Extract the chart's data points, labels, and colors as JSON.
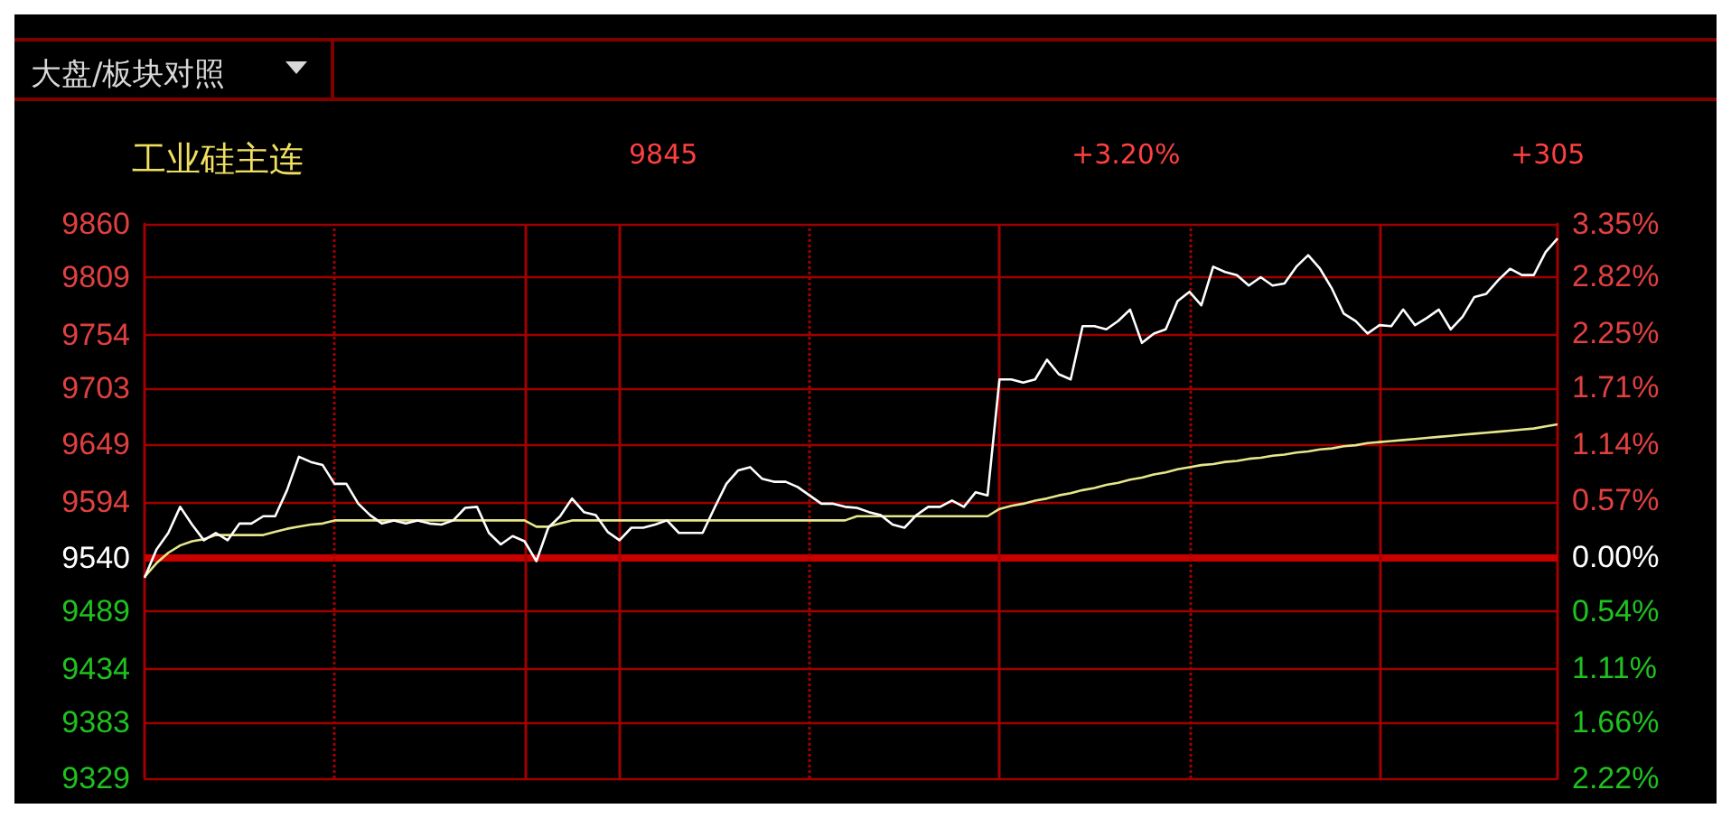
{
  "chart_data": {
    "type": "line",
    "title": "工业硅主连",
    "subtitle": "大盘/板块对照",
    "annotations": [
      "9845",
      "+3.20%",
      "+305"
    ],
    "categories": [
      null,
      null,
      null,
      null,
      null,
      null,
      null,
      null,
      null,
      null,
      null,
      null,
      null,
      null,
      null,
      null,
      null,
      null,
      null,
      null,
      null,
      null,
      null,
      null,
      null,
      null,
      null,
      null,
      null,
      null,
      null,
      null,
      null,
      null,
      null,
      null,
      null,
      null,
      null,
      null,
      null,
      null,
      null,
      null,
      null,
      null,
      null,
      null,
      null,
      null,
      null,
      null,
      null,
      null,
      null,
      null,
      null,
      null,
      null,
      null,
      null,
      null,
      null,
      null,
      null,
      null,
      null,
      null,
      null,
      null,
      null,
      null,
      null,
      null,
      null,
      null,
      null,
      null,
      null,
      null,
      null,
      null,
      null,
      null,
      null,
      null,
      null,
      null,
      null,
      null,
      null,
      null,
      null,
      null,
      null,
      null,
      null,
      null,
      null,
      null,
      null,
      null,
      null,
      null,
      null,
      null,
      null,
      null,
      null,
      null,
      null,
      null,
      null,
      null,
      null,
      null,
      null,
      null,
      null,
      null
    ],
    "series": [
      {
        "color": "#ffffff",
        "values": [
          9521,
          9548,
          9564,
          9589,
          9572,
          9557,
          9564,
          9557,
          9573,
          9573,
          9580,
          9580,
          9605,
          9637,
          9632,
          9629,
          9611,
          9611,
          9592,
          9581,
          9573,
          9576,
          9573,
          9576,
          9573,
          9572,
          9576,
          9588,
          9589,
          9564,
          9553,
          9561,
          9556,
          9537,
          9569,
          9580,
          9597,
          9584,
          9581,
          9565,
          9557,
          9569,
          9569,
          9572,
          9576,
          9564,
          9564,
          9564,
          9588,
          9611,
          9624,
          9627,
          9616,
          9613,
          9613,
          9608,
          9600,
          9592,
          9592,
          9589,
          9588,
          9584,
          9581,
          9572,
          9569,
          9581,
          9589,
          9589,
          9595,
          9589,
          9603,
          9600,
          9711,
          9711,
          9708,
          9711,
          9730,
          9716,
          9711,
          9762,
          9762,
          9759,
          9767,
          9778,
          9746,
          9755,
          9759,
          9786,
          9795,
          9782,
          9819,
          9814,
          9811,
          9801,
          9809,
          9801,
          9803,
          9819,
          9830,
          9817,
          9798,
          9774,
          9767,
          9755,
          9763,
          9762,
          9778,
          9763,
          9770,
          9778,
          9759,
          9771,
          9790,
          9793,
          9806,
          9817,
          9811,
          9811,
          9833,
          9846
        ]
      },
      {
        "color": "#e6e68c",
        "values": [
          9522,
          9535,
          9545,
          9552,
          9556,
          9558,
          9562,
          9562,
          9562,
          9562,
          9562,
          9565,
          9568,
          9570,
          9572,
          9573,
          9576,
          9576,
          9576,
          9576,
          9576,
          9576,
          9576,
          9576,
          9576,
          9576,
          9576,
          9576,
          9576,
          9576,
          9576,
          9576,
          9576,
          9570,
          9570,
          9573,
          9576,
          9576,
          9576,
          9576,
          9576,
          9576,
          9576,
          9576,
          9576,
          9576,
          9576,
          9576,
          9576,
          9576,
          9576,
          9576,
          9576,
          9576,
          9576,
          9576,
          9576,
          9576,
          9576,
          9576,
          9580,
          9580,
          9580,
          9580,
          9580,
          9580,
          9580,
          9580,
          9580,
          9580,
          9580,
          9580,
          9587,
          9590,
          9592,
          9595,
          9597,
          9600,
          9602,
          9605,
          9607,
          9610,
          9612,
          9615,
          9617,
          9620,
          9622,
          9625,
          9627,
          9629,
          9630,
          9632,
          9633,
          9635,
          9636,
          9638,
          9639,
          9641,
          9642,
          9644,
          9645,
          9647,
          9648,
          9650,
          9651,
          9652,
          9653,
          9654,
          9655,
          9656,
          9657,
          9658,
          9659,
          9660,
          9661,
          9662,
          9663,
          9664,
          9666,
          9668
        ]
      }
    ],
    "ylim": [
      9329,
      9860
    ],
    "yticks": [
      9329,
      9383,
      9434,
      9489,
      9540,
      9594,
      9649,
      9703,
      9754,
      9809,
      9860
    ],
    "y2lim": [
      -2.22,
      3.35
    ],
    "y2ticks": [
      {
        "value": -2.22,
        "label": "2.22%"
      },
      {
        "value": -1.66,
        "label": "1.66%"
      },
      {
        "value": -1.11,
        "label": "1.11%"
      },
      {
        "value": -0.54,
        "label": "0.54%"
      },
      {
        "value": 0,
        "label": "0.00%"
      },
      {
        "value": 0.57,
        "label": "0.57%"
      },
      {
        "value": 1.14,
        "label": "1.14%"
      },
      {
        "value": 1.71,
        "label": "1.71%"
      },
      {
        "value": 2.25,
        "label": "2.25%"
      },
      {
        "value": 2.82,
        "label": "2.82%"
      },
      {
        "value": 3.35,
        "label": "3.35%"
      }
    ],
    "ref_lines": [
      {
        "axis": "y",
        "value": 9540,
        "color": "#c80000"
      }
    ],
    "grid": "y",
    "marker": "none",
    "line_style": "solid"
  }
}
